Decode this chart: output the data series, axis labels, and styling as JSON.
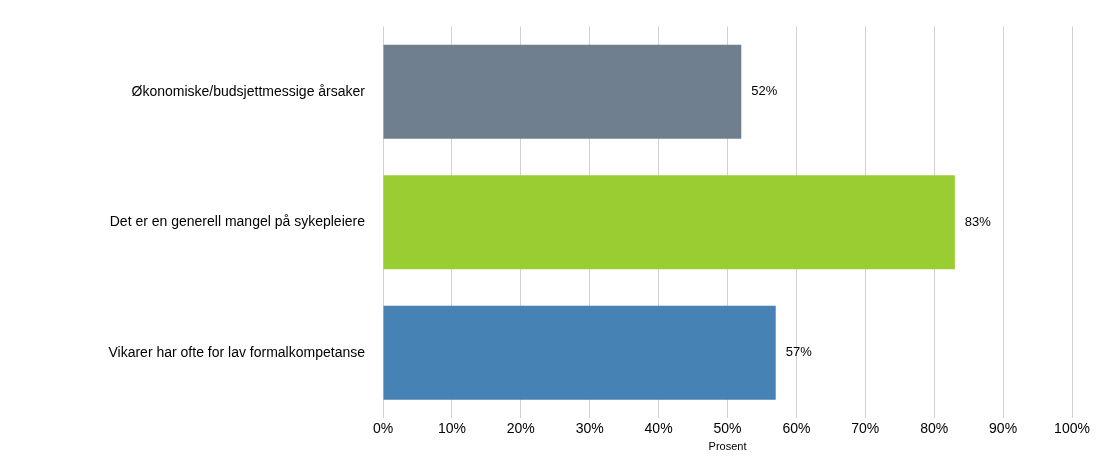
{
  "chart_data": {
    "type": "bar",
    "orientation": "horizontal",
    "categories": [
      "Økonomiske/budsjettmessige årsaker",
      "Det er en generell mangel på sykepleiere",
      "Vikarer har ofte for lav formalkompetanse"
    ],
    "values": [
      52,
      83,
      57
    ],
    "colors": [
      "#6f7f8f",
      "#9acd32",
      "#4682b4"
    ],
    "value_labels": [
      "52%",
      "83%",
      "57%"
    ],
    "xlim": [
      0,
      100
    ],
    "xticks": [
      {
        "value": 0,
        "label": "0%"
      },
      {
        "value": 10,
        "label": "10%"
      },
      {
        "value": 20,
        "label": "20%"
      },
      {
        "value": 30,
        "label": "30%"
      },
      {
        "value": 40,
        "label": "40%"
      },
      {
        "value": 50,
        "label": "50%"
      },
      {
        "value": 60,
        "label": "60%"
      },
      {
        "value": 70,
        "label": "70%"
      },
      {
        "value": 80,
        "label": "80%"
      },
      {
        "value": 90,
        "label": "90%"
      },
      {
        "value": 100,
        "label": "100%"
      }
    ],
    "xlabel": "Prosent",
    "grid": "x",
    "legend": false
  }
}
